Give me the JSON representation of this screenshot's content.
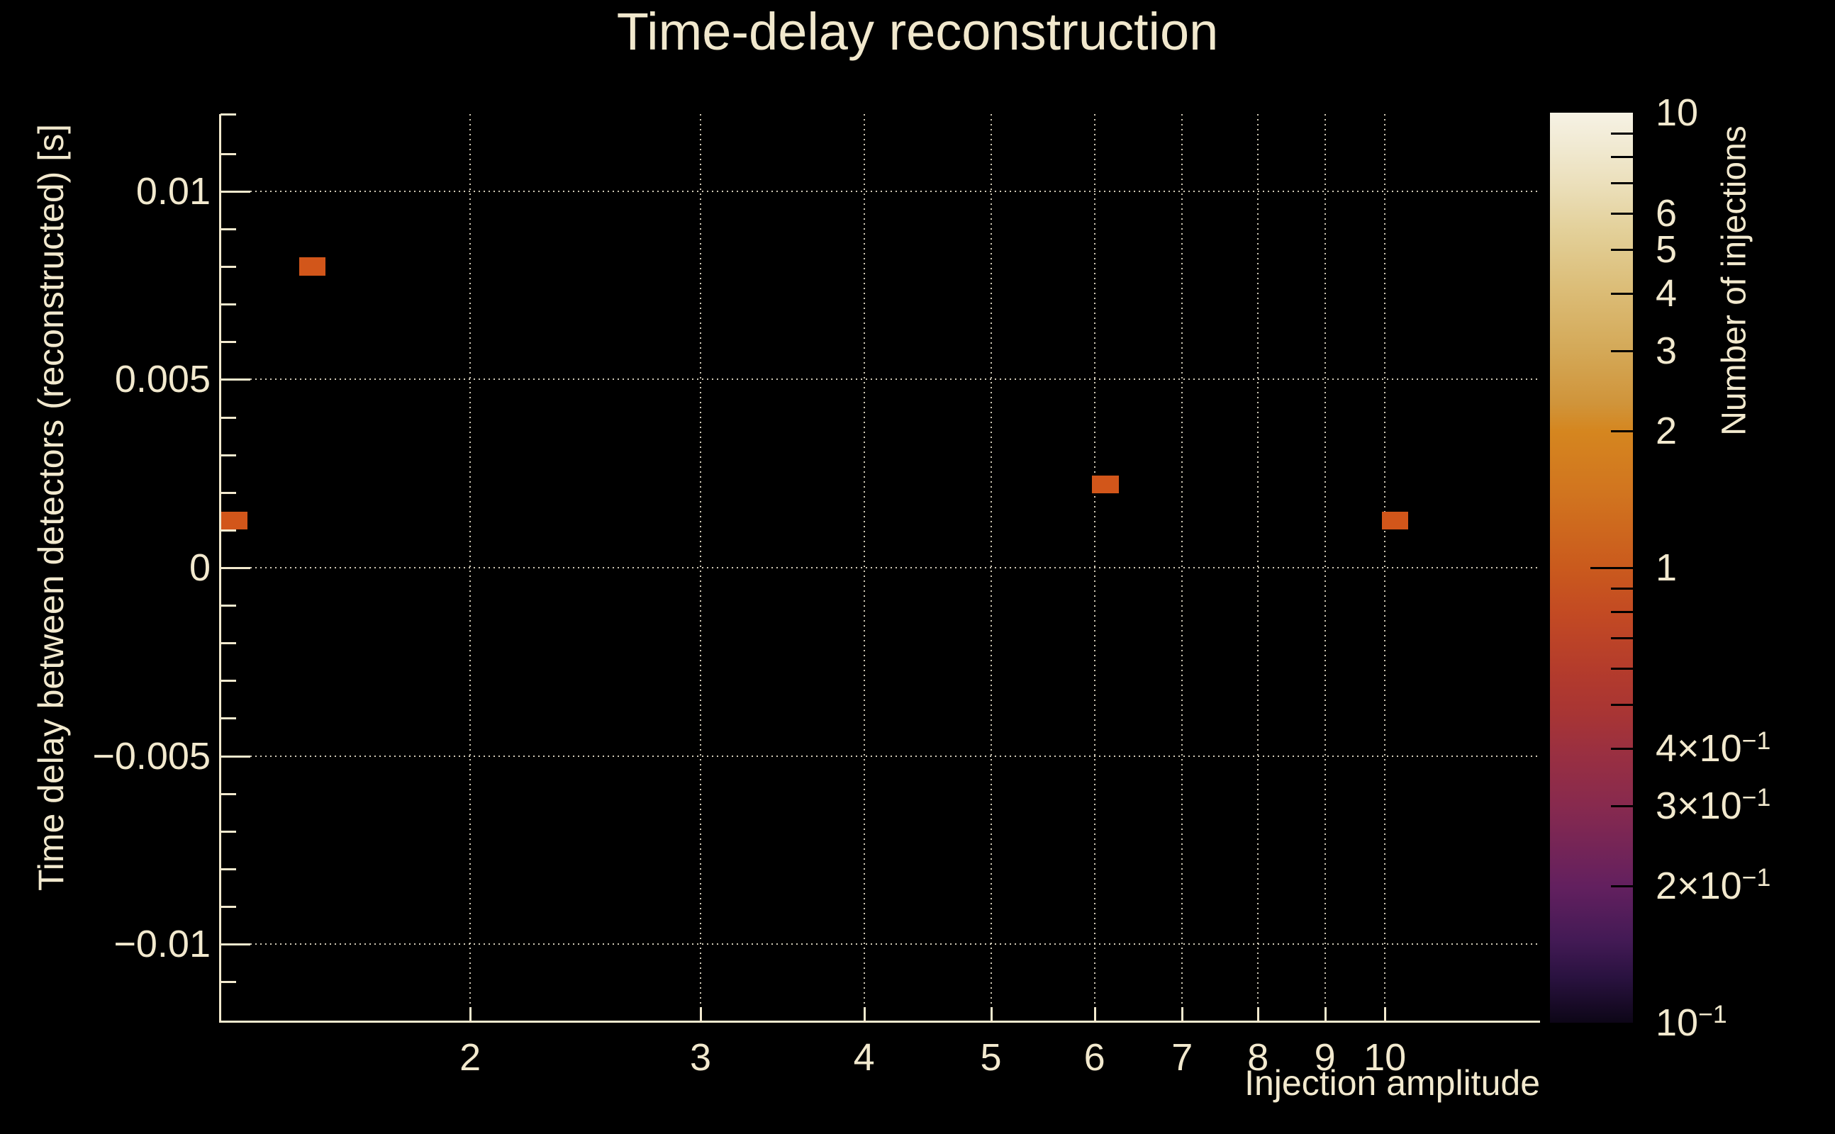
{
  "title": "Time-delay reconstruction",
  "colors": {
    "background": "#000000",
    "text": "#f2e9ce",
    "axis": "#f2e9ce",
    "grid": "rgba(244,236,214,0.85)",
    "bin_fill": "#d2561a",
    "colorbar_tick": "#000000"
  },
  "chart_data": {
    "type": "heatmap",
    "title": "Time-delay reconstruction",
    "xlabel": "Injection amplitude",
    "ylabel": "Time delay between detectors (reconstructed) [s]",
    "zlabel": "Number of injections",
    "x_scale": "log",
    "x_range": [
      1.289,
      13.14
    ],
    "y_scale": "linear",
    "y_range": [
      -0.01205,
      0.01205
    ],
    "z_scale": "log",
    "z_range": [
      0.1,
      10
    ],
    "grid": true,
    "x_ticks": [
      {
        "v": 2,
        "label": "2"
      },
      {
        "v": 3,
        "label": "3"
      },
      {
        "v": 4,
        "label": "4"
      },
      {
        "v": 5,
        "label": "5"
      },
      {
        "v": 6,
        "label": "6"
      },
      {
        "v": 7,
        "label": "7"
      },
      {
        "v": 8,
        "label": "8"
      },
      {
        "v": 9,
        "label": "9"
      },
      {
        "v": 10,
        "label": "10"
      }
    ],
    "y_ticks_major": [
      {
        "v": 0.01,
        "label": "0.01"
      },
      {
        "v": 0.005,
        "label": "0.005"
      },
      {
        "v": 0,
        "label": "0"
      },
      {
        "v": -0.005,
        "label": "−0.005"
      },
      {
        "v": -0.01,
        "label": "−0.01"
      }
    ],
    "y_ticks_minor": [
      0.01205,
      0.011,
      0.009,
      0.008,
      0.007,
      0.006,
      0.004,
      0.003,
      0.002,
      0.001,
      -0.001,
      -0.002,
      -0.003,
      -0.004,
      -0.006,
      -0.007,
      -0.008,
      -0.009,
      -0.011,
      -0.01205
    ],
    "bins": [
      {
        "x": [
          1.289,
          1.351
        ],
        "y": [
          0.00102,
          0.00149
        ],
        "count": 1
      },
      {
        "x": [
          1.48,
          1.55
        ],
        "y": [
          0.00776,
          0.00825
        ],
        "count": 1
      },
      {
        "x": [
          5.97,
          6.26
        ],
        "y": [
          0.00198,
          0.00245
        ],
        "count": 1
      },
      {
        "x": [
          9.95,
          10.42
        ],
        "y": [
          0.00102,
          0.00149
        ],
        "count": 1
      }
    ],
    "colorbar": {
      "ticks": [
        {
          "v": 10,
          "text": "10",
          "sup": "",
          "labeled": true,
          "edge": true
        },
        {
          "v": 9,
          "text": "",
          "sup": "",
          "labeled": false
        },
        {
          "v": 8,
          "text": "",
          "sup": "",
          "labeled": false
        },
        {
          "v": 7,
          "text": "",
          "sup": "",
          "labeled": false
        },
        {
          "v": 6,
          "text": "6",
          "sup": "",
          "labeled": true
        },
        {
          "v": 5,
          "text": "5",
          "sup": "",
          "labeled": true
        },
        {
          "v": 4,
          "text": "4",
          "sup": "",
          "labeled": true
        },
        {
          "v": 3,
          "text": "3",
          "sup": "",
          "labeled": true
        },
        {
          "v": 2,
          "text": "2",
          "sup": "",
          "labeled": true
        },
        {
          "v": 1,
          "text": "1",
          "sup": "",
          "labeled": true,
          "primary": true
        },
        {
          "v": 0.9,
          "text": "",
          "sup": "",
          "labeled": false
        },
        {
          "v": 0.8,
          "text": "",
          "sup": "",
          "labeled": false
        },
        {
          "v": 0.7,
          "text": "",
          "sup": "",
          "labeled": false
        },
        {
          "v": 0.6,
          "text": "",
          "sup": "",
          "labeled": false
        },
        {
          "v": 0.5,
          "text": "",
          "sup": "",
          "labeled": false
        },
        {
          "v": 0.4,
          "text": "4×10",
          "sup": "−1",
          "labeled": true
        },
        {
          "v": 0.3,
          "text": "3×10",
          "sup": "−1",
          "labeled": true
        },
        {
          "v": 0.2,
          "text": "2×10",
          "sup": "−1",
          "labeled": true
        },
        {
          "v": 0.1,
          "text": "10",
          "sup": "−1",
          "labeled": true,
          "edge": true
        }
      ],
      "gradient": [
        {
          "pos": 0.0,
          "color": "#f6f2e4"
        },
        {
          "pos": 0.035,
          "color": "#f1ead3"
        },
        {
          "pos": 0.08,
          "color": "#ebdfba"
        },
        {
          "pos": 0.13,
          "color": "#e3d099"
        },
        {
          "pos": 0.19,
          "color": "#dcbe79"
        },
        {
          "pos": 0.26,
          "color": "#d4a958"
        },
        {
          "pos": 0.32,
          "color": "#d0943a"
        },
        {
          "pos": 0.35,
          "color": "#d5861f"
        },
        {
          "pos": 0.42,
          "color": "#d1741f"
        },
        {
          "pos": 0.5,
          "color": "#ca5a1d"
        },
        {
          "pos": 0.55,
          "color": "#c34a23"
        },
        {
          "pos": 0.62,
          "color": "#b23a2d"
        },
        {
          "pos": 0.66,
          "color": "#a83534"
        },
        {
          "pos": 0.7,
          "color": "#9b3040"
        },
        {
          "pos": 0.76,
          "color": "#882a4e"
        },
        {
          "pos": 0.85,
          "color": "#63205f"
        },
        {
          "pos": 0.91,
          "color": "#431a55"
        },
        {
          "pos": 0.95,
          "color": "#2a1240"
        },
        {
          "pos": 1.0,
          "color": "#0d0617"
        }
      ]
    }
  }
}
